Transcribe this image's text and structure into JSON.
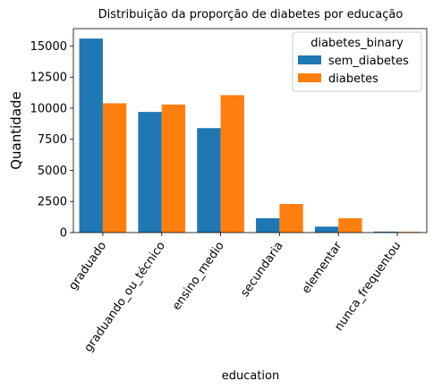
{
  "chart_data": {
    "type": "bar",
    "title": "Distribuição da proporção de diabetes por educação",
    "xlabel": "education",
    "ylabel": "Quantidade",
    "categories": [
      "graduado",
      "graduando_ou_técnico",
      "ensino_medio",
      "secundaria",
      "elementar",
      "nunca_frequentou"
    ],
    "series": [
      {
        "name": "sem_diabetes",
        "color": "#1f77b4",
        "values": [
          15600,
          9700,
          8400,
          1150,
          480,
          80
        ]
      },
      {
        "name": "diabetes",
        "color": "#ff7f0e",
        "values": [
          10400,
          10300,
          11050,
          2300,
          1150,
          60
        ]
      }
    ],
    "ylim": [
      0,
      16400
    ],
    "yticks": [
      0,
      2500,
      5000,
      7500,
      10000,
      12500,
      15000
    ],
    "legend": {
      "title": "diabetes_binary",
      "position": "top-right"
    },
    "grid": false
  }
}
